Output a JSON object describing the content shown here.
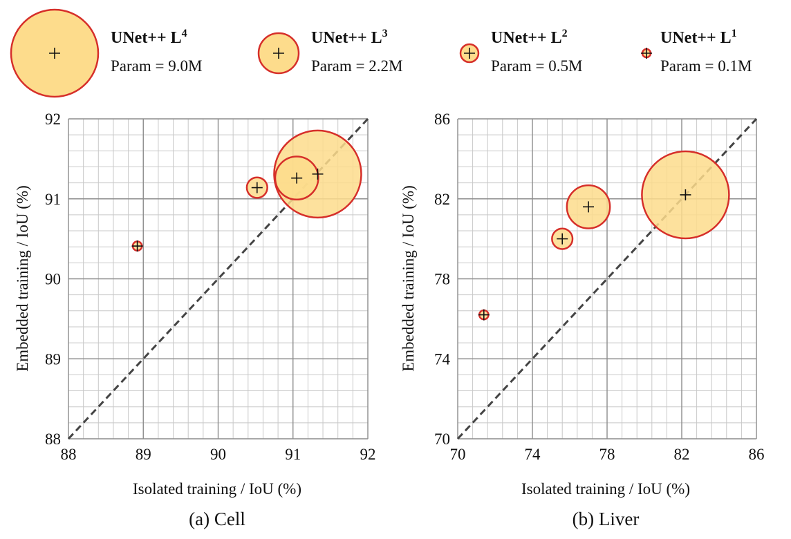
{
  "legend": [
    {
      "model": "UNet++ L",
      "superscript": "4",
      "param_label": "Param = 9.0M",
      "params_m": 9.0
    },
    {
      "model": "UNet++ L",
      "superscript": "3",
      "param_label": "Param = 2.2M",
      "params_m": 2.2
    },
    {
      "model": "UNet++ L",
      "superscript": "2",
      "param_label": "Param = 0.5M",
      "params_m": 0.5
    },
    {
      "model": "UNet++ L",
      "superscript": "1",
      "param_label": "Param = 0.1M",
      "params_m": 0.1
    }
  ],
  "colors": {
    "fill": "#fddc8c",
    "stroke": "#d62f2a",
    "grid_major": "#8c8c8c",
    "grid_minor": "#c8c8c8",
    "diagonal": "#444444"
  },
  "chart_data": [
    {
      "type": "scatter",
      "caption": "(a) Cell",
      "xlabel": "Isolated training / IoU (%)",
      "ylabel": "Embedded training / IoU (%)",
      "xlim": [
        88,
        92
      ],
      "ylim": [
        88,
        92
      ],
      "ticks": [
        "88",
        "89",
        "90",
        "91",
        "92"
      ],
      "tick_values": [
        88,
        89,
        90,
        91,
        92
      ],
      "grid": true,
      "diagonal": true,
      "points": [
        {
          "model": "L4",
          "x": 91.33,
          "y": 91.31,
          "params_m": 9.0
        },
        {
          "model": "L3",
          "x": 91.05,
          "y": 91.26,
          "params_m": 2.2
        },
        {
          "model": "L2",
          "x": 90.52,
          "y": 91.14,
          "params_m": 0.5
        },
        {
          "model": "L1",
          "x": 88.92,
          "y": 90.41,
          "params_m": 0.1
        }
      ]
    },
    {
      "type": "scatter",
      "caption": "(b) Liver",
      "xlabel": "Isolated training / IoU (%)",
      "ylabel": "Embedded training / IoU (%)",
      "xlim": [
        70,
        86
      ],
      "ylim": [
        70,
        86
      ],
      "ticks": [
        "70",
        "74",
        "78",
        "82",
        "86"
      ],
      "tick_values": [
        70,
        74,
        78,
        82,
        86
      ],
      "grid": true,
      "diagonal": true,
      "points": [
        {
          "model": "L4",
          "x": 82.2,
          "y": 82.2,
          "params_m": 9.0
        },
        {
          "model": "L3",
          "x": 77.0,
          "y": 81.6,
          "params_m": 2.2
        },
        {
          "model": "L2",
          "x": 75.6,
          "y": 80.0,
          "params_m": 0.5
        },
        {
          "model": "L1",
          "x": 71.4,
          "y": 76.2,
          "params_m": 0.1
        }
      ]
    }
  ]
}
